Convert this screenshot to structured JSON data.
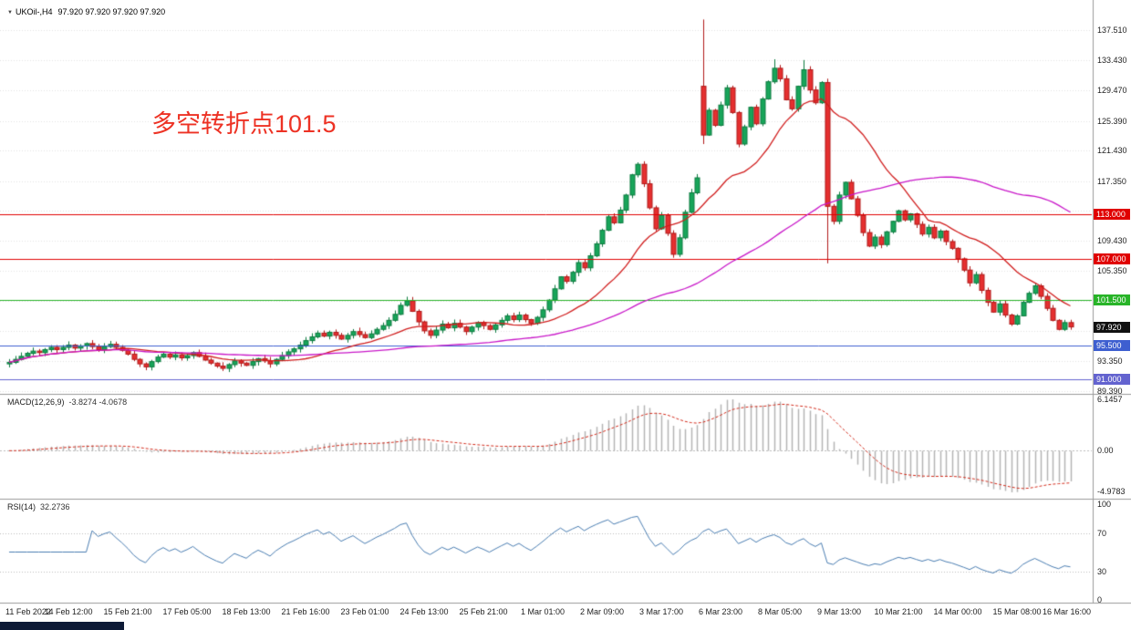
{
  "header": {
    "title": "UKOil-,H4",
    "quotes": "97.920 97.920 97.920 97.920"
  },
  "annotation": {
    "text": "多空转折点101.5",
    "color": "#ed3224"
  },
  "chart_data": {
    "type": "candlestick",
    "symbol": "UKOil",
    "timeframe": "H4",
    "y_axis": {
      "min": 89.0,
      "max": 141.5,
      "visible_labels": [
        "137.510",
        "133.430",
        "129.470",
        "125.390",
        "121.430",
        "117.350",
        "109.430",
        "105.350",
        "93.350",
        "89.390"
      ],
      "grid_prices": [
        89.39,
        93.35,
        97.43,
        101.39,
        105.35,
        109.43,
        113.39,
        117.35,
        121.43,
        125.39,
        129.47,
        133.43,
        137.51
      ]
    },
    "x_axis": {
      "labels": [
        "11 Feb 2022",
        "14 Feb 12:00",
        "15 Feb 21:00",
        "17 Feb 05:00",
        "18 Feb 13:00",
        "21 Feb 16:00",
        "23 Feb 01:00",
        "24 Feb 13:00",
        "25 Feb 21:00",
        "1 Mar 01:00",
        "2 Mar 09:00",
        "3 Mar 17:00",
        "6 Mar 23:00",
        "8 Mar 05:00",
        "9 Mar 13:00",
        "10 Mar 21:00",
        "14 Mar 00:00",
        "15 Mar 08:00",
        "16 Mar 16:00"
      ]
    },
    "candles": {
      "count": 180,
      "first_open": 93.0,
      "closes": [
        93.2,
        93.6,
        94.0,
        94.4,
        94.7,
        94.5,
        94.9,
        95.2,
        94.9,
        95.2,
        95.5,
        95.1,
        95.4,
        95.7,
        95.3,
        94.9,
        95.3,
        95.6,
        95.2,
        94.8,
        94.3,
        93.6,
        93.0,
        92.6,
        93.3,
        93.9,
        94.3,
        93.9,
        94.2,
        93.8,
        94.1,
        94.5,
        94.0,
        93.5,
        93.1,
        92.7,
        92.4,
        92.9,
        93.4,
        93.1,
        92.8,
        93.3,
        93.7,
        93.4,
        93.0,
        93.6,
        94.1,
        94.6,
        95.0,
        95.5,
        96.1,
        96.6,
        97.1,
        96.7,
        97.2,
        96.8,
        96.3,
        96.8,
        97.3,
        96.9,
        96.5,
        97.0,
        97.6,
        98.1,
        98.8,
        99.6,
        100.8,
        101.4,
        100.0,
        98.6,
        97.4,
        96.8,
        97.5,
        98.3,
        97.8,
        98.4,
        97.9,
        97.3,
        97.9,
        98.5,
        98.1,
        97.6,
        98.2,
        98.8,
        99.4,
        98.9,
        99.5,
        98.9,
        98.4,
        99.2,
        100.2,
        101.5,
        103.0,
        104.6,
        104.0,
        105.2,
        106.5,
        105.8,
        107.4,
        109.0,
        110.8,
        112.6,
        111.8,
        113.5,
        115.5,
        118.2,
        119.6,
        117.0,
        113.8,
        111.0,
        112.8,
        110.4,
        107.6,
        109.8,
        113.2,
        115.8,
        117.8,
        123.5,
        126.8,
        124.8,
        127.5,
        129.8,
        126.5,
        122.3,
        124.6,
        127.2,
        125.0,
        128.3,
        130.6,
        132.4,
        131.0,
        128.2,
        127.0,
        130.0,
        132.2,
        129.5,
        127.8,
        130.5,
        114.0,
        112.0,
        115.5,
        117.2,
        115.0,
        112.8,
        110.5,
        108.7,
        109.9,
        108.9,
        110.6,
        112.0,
        113.4,
        112.2,
        113.0,
        111.6,
        110.3,
        111.2,
        109.8,
        110.7,
        109.3,
        108.4,
        107.0,
        105.5,
        103.8,
        104.9,
        102.8,
        101.2,
        99.9,
        101.0,
        99.5,
        98.3,
        99.4,
        101.2,
        102.4,
        103.4,
        102.0,
        100.4,
        98.8,
        97.6,
        98.5,
        97.92
      ],
      "overrides": {
        "23": {
          "low": 92.15
        },
        "36": {
          "low": 92.05
        },
        "67": {
          "high": 101.95
        },
        "117": {
          "open": 130.0,
          "high": 138.9,
          "low": 122.3
        },
        "129": {
          "high": 133.6
        },
        "134": {
          "high": 133.5
        },
        "138": {
          "low": 106.4
        }
      }
    },
    "candle_colors": {
      "up_fill": "#18a55a",
      "up_border": "#0b7a3e",
      "down_fill": "#e53030",
      "down_border": "#b01818"
    },
    "overlays": {
      "moving_averages": [
        {
          "name": "ma-fast",
          "type": "sma",
          "period": 18,
          "color": "#d01d1d"
        },
        {
          "name": "ma-slow",
          "type": "sma",
          "period": 60,
          "color": "#c816c8"
        }
      ],
      "horizontal_lines": [
        {
          "price": 113.0,
          "tag": "113.000",
          "color": "#e00000"
        },
        {
          "price": 107.0,
          "tag": "107.000",
          "color": "#e00000"
        },
        {
          "price": 101.5,
          "tag": "101.500",
          "color": "#28b428"
        },
        {
          "price": 95.5,
          "tag": "95.500",
          "color": "#3e5fd0"
        },
        {
          "price": 91.0,
          "tag": "91.000",
          "color": "#6363cf"
        }
      ],
      "last_price": {
        "value": 97.92,
        "tag": "97.920",
        "color": "#111111"
      }
    },
    "indicators": {
      "macd": {
        "label": "MACD(12,26,9)",
        "values": "-3.8274 -4.0678",
        "fast": 12,
        "slow": 26,
        "signal": 9,
        "scale": {
          "top": "6.1457",
          "zero": "0.00",
          "bottom": "-4.9783"
        },
        "histogram_color": "#b4b4b4",
        "signal_color": "#d22a1a"
      },
      "rsi": {
        "label": "RSI(14)",
        "value": "32.2736",
        "period": 14,
        "levels": [
          70,
          30
        ],
        "scale": [
          "100",
          "70",
          "30",
          "0"
        ],
        "line_color": "#4a7db1"
      }
    }
  }
}
